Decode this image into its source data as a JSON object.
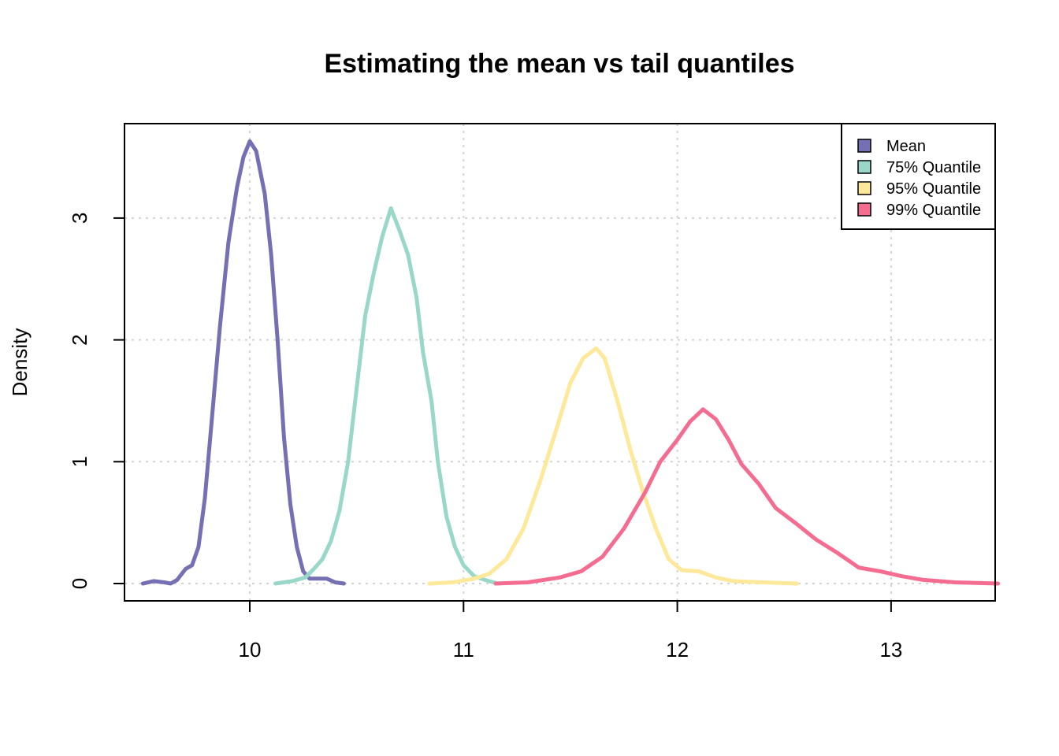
{
  "chart_data": {
    "type": "line",
    "title": "Estimating the mean vs tail quantiles",
    "xlabel": "",
    "ylabel": "Density",
    "xlim": [
      9.5,
      13.5
    ],
    "ylim": [
      0,
      3.7
    ],
    "x_ticks": [
      "10",
      "11",
      "12",
      "13"
    ],
    "y_ticks": [
      "0",
      "1",
      "2",
      "3"
    ],
    "grid": true,
    "legend_position": "top-right",
    "series": [
      {
        "name": "Mean",
        "color": "#7570b3",
        "points": [
          [
            9.5,
            0.0
          ],
          [
            9.55,
            0.02
          ],
          [
            9.6,
            0.01
          ],
          [
            9.63,
            0.0
          ],
          [
            9.66,
            0.03
          ],
          [
            9.7,
            0.12
          ],
          [
            9.73,
            0.15
          ],
          [
            9.76,
            0.3
          ],
          [
            9.79,
            0.7
          ],
          [
            9.82,
            1.3
          ],
          [
            9.86,
            2.1
          ],
          [
            9.9,
            2.8
          ],
          [
            9.94,
            3.25
          ],
          [
            9.97,
            3.5
          ],
          [
            10.0,
            3.63
          ],
          [
            10.03,
            3.55
          ],
          [
            10.07,
            3.2
          ],
          [
            10.1,
            2.7
          ],
          [
            10.13,
            2.0
          ],
          [
            10.16,
            1.2
          ],
          [
            10.19,
            0.65
          ],
          [
            10.22,
            0.3
          ],
          [
            10.25,
            0.1
          ],
          [
            10.28,
            0.04
          ],
          [
            10.32,
            0.04
          ],
          [
            10.36,
            0.04
          ],
          [
            10.4,
            0.01
          ],
          [
            10.44,
            0.0
          ]
        ]
      },
      {
        "name": "75% Quantile",
        "color": "#99d8c9",
        "points": [
          [
            10.12,
            0.0
          ],
          [
            10.2,
            0.02
          ],
          [
            10.26,
            0.05
          ],
          [
            10.3,
            0.12
          ],
          [
            10.34,
            0.2
          ],
          [
            10.38,
            0.35
          ],
          [
            10.42,
            0.6
          ],
          [
            10.46,
            1.0
          ],
          [
            10.5,
            1.6
          ],
          [
            10.54,
            2.2
          ],
          [
            10.58,
            2.55
          ],
          [
            10.62,
            2.85
          ],
          [
            10.66,
            3.08
          ],
          [
            10.7,
            2.9
          ],
          [
            10.74,
            2.7
          ],
          [
            10.78,
            2.35
          ],
          [
            10.81,
            1.9
          ],
          [
            10.85,
            1.5
          ],
          [
            10.88,
            1.0
          ],
          [
            10.92,
            0.55
          ],
          [
            10.96,
            0.3
          ],
          [
            11.0,
            0.15
          ],
          [
            11.05,
            0.06
          ],
          [
            11.1,
            0.03
          ],
          [
            11.16,
            0.0
          ]
        ]
      },
      {
        "name": "95% Quantile",
        "color": "#fee89a",
        "points": [
          [
            10.84,
            0.0
          ],
          [
            10.95,
            0.01
          ],
          [
            11.05,
            0.04
          ],
          [
            11.12,
            0.08
          ],
          [
            11.2,
            0.2
          ],
          [
            11.28,
            0.45
          ],
          [
            11.36,
            0.85
          ],
          [
            11.44,
            1.3
          ],
          [
            11.5,
            1.65
          ],
          [
            11.56,
            1.85
          ],
          [
            11.62,
            1.93
          ],
          [
            11.66,
            1.85
          ],
          [
            11.72,
            1.5
          ],
          [
            11.78,
            1.1
          ],
          [
            11.84,
            0.75
          ],
          [
            11.9,
            0.45
          ],
          [
            11.96,
            0.2
          ],
          [
            12.02,
            0.11
          ],
          [
            12.1,
            0.1
          ],
          [
            12.18,
            0.05
          ],
          [
            12.26,
            0.02
          ],
          [
            12.4,
            0.01
          ],
          [
            12.56,
            0.0
          ]
        ]
      },
      {
        "name": "99% Quantile",
        "color": "#f46d91",
        "points": [
          [
            11.15,
            0.0
          ],
          [
            11.3,
            0.01
          ],
          [
            11.45,
            0.05
          ],
          [
            11.55,
            0.1
          ],
          [
            11.65,
            0.22
          ],
          [
            11.75,
            0.45
          ],
          [
            11.85,
            0.75
          ],
          [
            11.92,
            1.0
          ],
          [
            12.0,
            1.18
          ],
          [
            12.06,
            1.33
          ],
          [
            12.12,
            1.43
          ],
          [
            12.18,
            1.35
          ],
          [
            12.24,
            1.18
          ],
          [
            12.3,
            0.98
          ],
          [
            12.38,
            0.82
          ],
          [
            12.46,
            0.62
          ],
          [
            12.55,
            0.5
          ],
          [
            12.65,
            0.36
          ],
          [
            12.75,
            0.25
          ],
          [
            12.85,
            0.13
          ],
          [
            12.95,
            0.1
          ],
          [
            13.05,
            0.06
          ],
          [
            13.15,
            0.03
          ],
          [
            13.3,
            0.01
          ],
          [
            13.5,
            0.0
          ]
        ]
      }
    ]
  }
}
